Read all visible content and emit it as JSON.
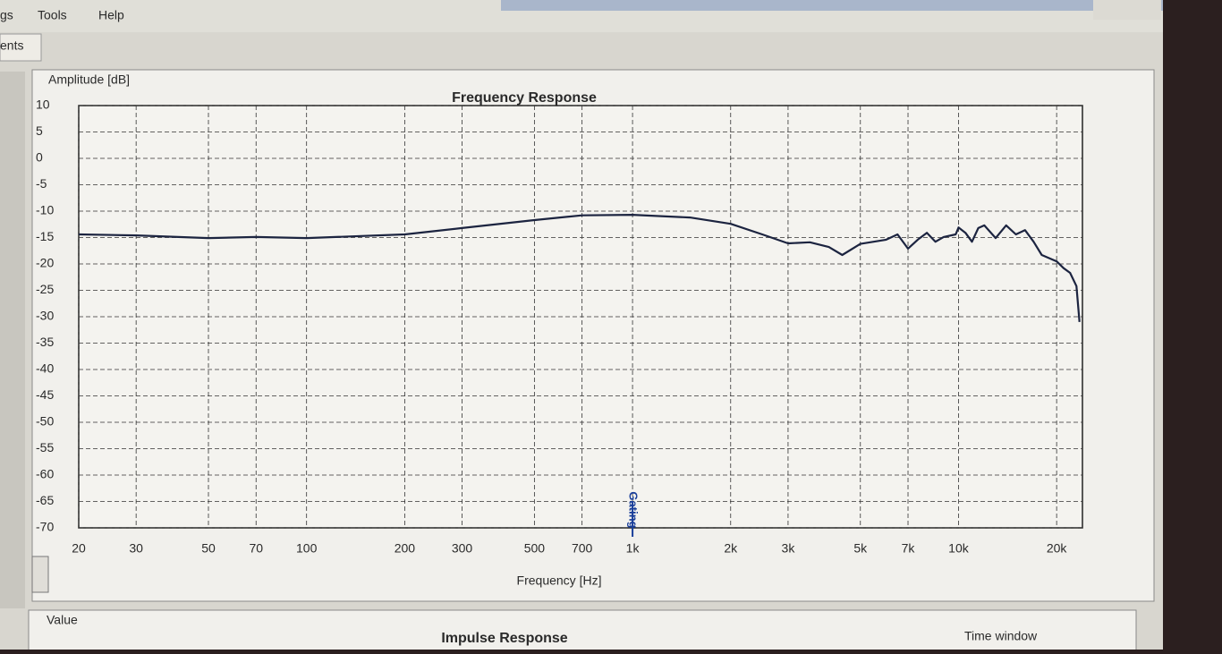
{
  "menu": [
    "gs",
    "Tools",
    "Help"
  ],
  "tab": "ents",
  "chart_data": {
    "type": "line",
    "title": "Frequency Response",
    "y_label": "Amplitude [dB]",
    "x_label": "Frequency [Hz]",
    "log_x": true,
    "grid": true,
    "color": "#1c2440",
    "xlim": [
      20,
      24000
    ],
    "ylim": [
      -70,
      10
    ],
    "xticks": [
      20,
      30,
      50,
      70,
      100,
      200,
      300,
      500,
      700,
      {
        "value": 1000,
        "label": "1k"
      },
      {
        "value": 2000,
        "label": "2k"
      },
      {
        "value": 3000,
        "label": "3k"
      },
      {
        "value": 5000,
        "label": "5k"
      },
      {
        "value": 7000,
        "label": "7k"
      },
      {
        "value": 10000,
        "label": "10k"
      },
      {
        "value": 20000,
        "label": "20k"
      }
    ],
    "yticks": [
      10,
      5,
      0,
      -5,
      -10,
      -15,
      -20,
      -25,
      -30,
      -35,
      -40,
      -45,
      -50,
      -55,
      -60,
      -65,
      -70
    ],
    "x": [
      20,
      30,
      50,
      70,
      100,
      200,
      300,
      500,
      700,
      1000,
      1500,
      2000,
      2500,
      3000,
      3500,
      4000,
      4400,
      5000,
      6000,
      6500,
      7000,
      7500,
      8000,
      8500,
      9000,
      9800,
      10000,
      10500,
      11000,
      11500,
      12000,
      13000,
      14000,
      15000,
      16000,
      17000,
      18000,
      20000,
      21000,
      22000,
      23000,
      23500
    ],
    "values": [
      -14.4,
      -14.6,
      -15.1,
      -14.9,
      -15.1,
      -14.4,
      -13.2,
      -11.7,
      -10.8,
      -10.7,
      -11.2,
      -12.4,
      -14.4,
      -16.1,
      -15.9,
      -16.8,
      -18.3,
      -16.2,
      -15.4,
      -14.4,
      -17.1,
      -15.4,
      -14.1,
      -15.8,
      -14.9,
      -14.4,
      -13.1,
      -14.1,
      -15.8,
      -13.2,
      -12.7,
      -15.1,
      -12.7,
      -14.4,
      -13.6,
      -15.8,
      -18.3,
      -19.5,
      -20.8,
      -21.7,
      -24.2,
      -31.0
    ],
    "annotations": [
      {
        "text": "Gating",
        "x": 1000
      }
    ]
  },
  "lower_panel": {
    "title": "Impulse Response",
    "y_label": "Value",
    "x_label": "Time window"
  }
}
